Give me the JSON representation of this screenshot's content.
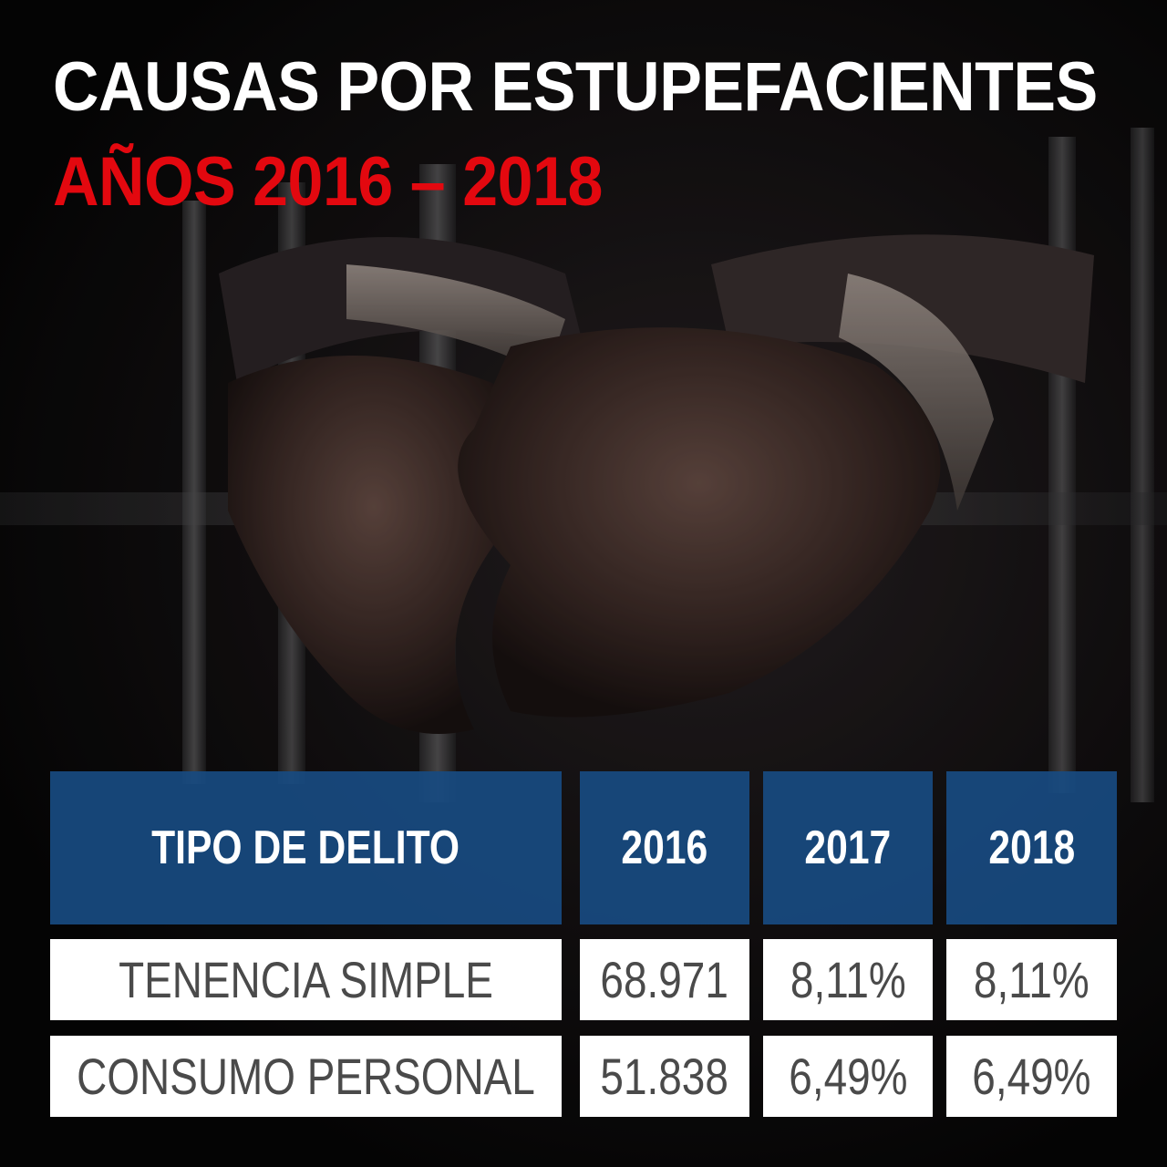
{
  "title_line1": "CAUSAS POR ESTUPEFACIENTES",
  "title_line2": "AÑOS 2016 – 2018",
  "colors": {
    "title_main": "#ffffff",
    "title_accent": "#e3080f",
    "header_bg": "#184a80",
    "cell_bg": "#ffffff",
    "cell_text": "#4a4a4a"
  },
  "table": {
    "headers": [
      "TIPO DE DELITO",
      "2016",
      "2017",
      "2018"
    ],
    "rows": [
      [
        "TENENCIA SIMPLE",
        "68.971",
        "8,11%",
        "8,11%"
      ],
      [
        "CONSUMO PERSONAL",
        "51.838",
        "6,49%",
        "6,49%"
      ]
    ]
  }
}
